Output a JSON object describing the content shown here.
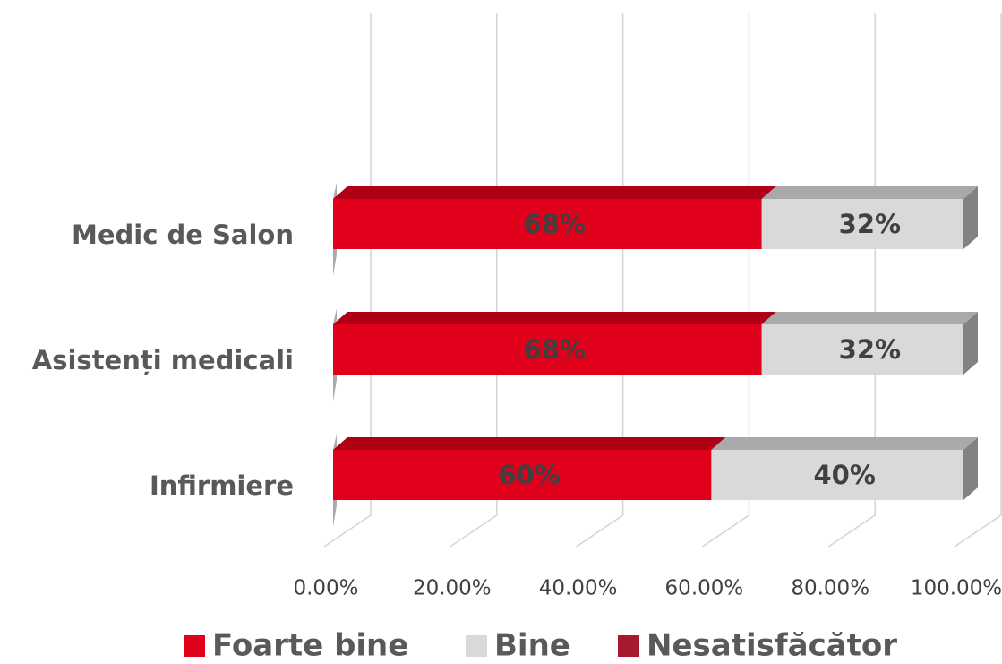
{
  "chart_data": {
    "type": "stacked-bar-3d",
    "categories": [
      "Medic de Salon",
      "Asistenți medicali",
      "Infirmiere"
    ],
    "series": [
      {
        "name": "Foarte bine",
        "color": "#e0001b",
        "values": [
          68,
          68,
          60
        ],
        "value_labels": [
          "68%",
          "68%",
          "60%"
        ]
      },
      {
        "name": "Bine",
        "color": "#d9d9d9",
        "values": [
          32,
          32,
          40
        ],
        "value_labels": [
          "32%",
          "32%",
          "40%"
        ]
      },
      {
        "name": "Nesatisfăcător",
        "color": "#a6192e",
        "values": [
          0,
          0,
          0
        ]
      }
    ],
    "xlim": [
      0,
      100
    ],
    "xticks": [
      {
        "value": 0,
        "label": "0.00%"
      },
      {
        "value": 20,
        "label": "20.00%"
      },
      {
        "value": 40,
        "label": "40.00%"
      },
      {
        "value": 60,
        "label": "60.00%"
      },
      {
        "value": 80,
        "label": "80.00%"
      },
      {
        "value": 100,
        "label": "100.00%"
      }
    ],
    "grid": true,
    "legend": "bottom"
  }
}
